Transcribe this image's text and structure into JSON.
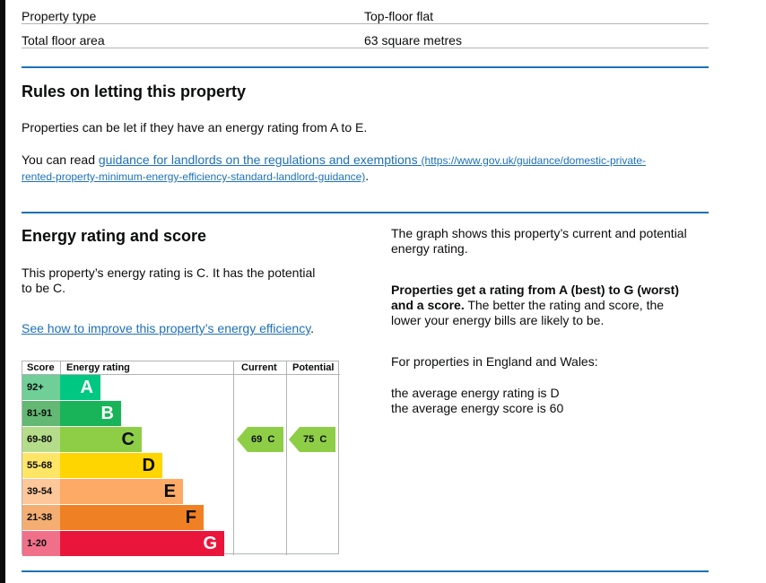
{
  "summary": {
    "rows": [
      {
        "label": "Property type",
        "value": "Top-floor flat"
      },
      {
        "label": "Total floor area",
        "value": "63 square metres"
      }
    ]
  },
  "letting": {
    "heading": "Rules on letting this property",
    "intro": "Properties can be let if they have an energy rating from A to E.",
    "read_prefix": "You can read ",
    "link_text": "guidance for landlords on the regulations and exemptions",
    "link_url_line1": "(https://www.gov.uk/guidance/domestic-private-",
    "link_url_line2": "rented-property-minimum-energy-efficiency-standard-landlord-guidance)",
    "read_suffix": "."
  },
  "energy": {
    "heading": "Energy rating and score",
    "rating_line1": "This property’s energy rating is C. It has the potential",
    "rating_line2": "to be C.",
    "improve_link": "See how to improve this property’s energy efficiency",
    "improve_suffix": ".",
    "graph_line1": "The graph shows this property’s current and potential",
    "graph_line2": "energy rating.",
    "bold_line1": "Properties get a rating from A (best) to G (worst)",
    "bold_line2": "and a score.",
    "rest_line2": " The better the rating and score, the",
    "rest_line3": "lower your energy bills are likely to be.",
    "region": "For properties in England and Wales:",
    "avg_rating": "the average energy rating is D",
    "avg_score": "the average energy score is 60"
  },
  "epc_chart": {
    "headers": {
      "score": "Score",
      "rating": "Energy rating",
      "current": "Current",
      "potential": "Potential"
    },
    "bands": [
      {
        "range": "92+",
        "letter": "A",
        "color": "#00c781",
        "light": "#6fcf97"
      },
      {
        "range": "81-91",
        "letter": "B",
        "color": "#19b459",
        "light": "#63b974"
      },
      {
        "range": "69-80",
        "letter": "C",
        "color": "#8dce46",
        "light": "#b4dc8a"
      },
      {
        "range": "55-68",
        "letter": "D",
        "color": "#ffd500",
        "light": "#ffe566"
      },
      {
        "range": "39-54",
        "letter": "E",
        "color": "#fcaa65",
        "light": "#fdc79a"
      },
      {
        "range": "21-38",
        "letter": "F",
        "color": "#ef8023",
        "light": "#f4ae72"
      },
      {
        "range": "1-20",
        "letter": "G",
        "color": "#e9153b",
        "light": "#f0708a"
      }
    ],
    "current": {
      "text": "69  C",
      "score": 69,
      "band": "C"
    },
    "potential": {
      "text": "75  C",
      "score": 75,
      "band": "C"
    }
  }
}
